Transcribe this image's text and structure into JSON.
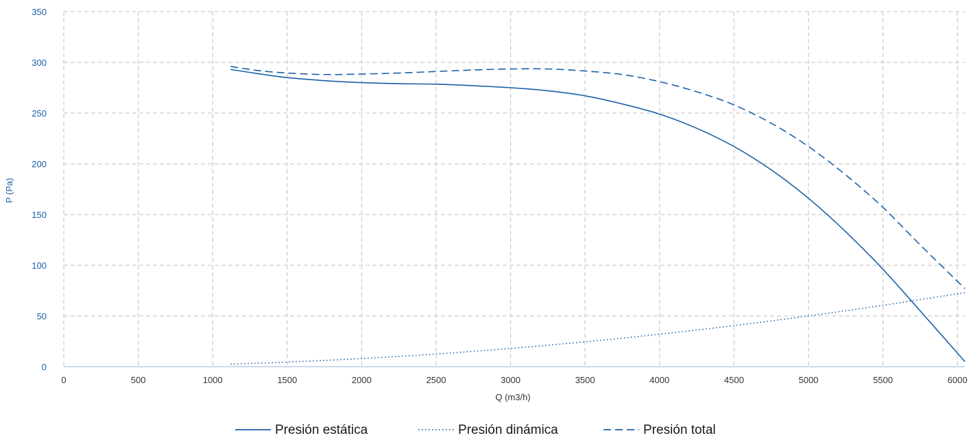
{
  "colors": {
    "series": "#1a5fa8",
    "grid": "#cccccc",
    "ytick": "#1a5fa8",
    "xtick": "#333333"
  },
  "chart_data": {
    "type": "line",
    "xlabel": "Q (m3/h)",
    "ylabel": "P (Pa)",
    "xlim": [
      0,
      6050
    ],
    "ylim": [
      0,
      350
    ],
    "xticks": [
      0,
      500,
      1000,
      1500,
      2000,
      2500,
      3000,
      3500,
      4000,
      4500,
      5000,
      5500,
      6000
    ],
    "yticks": [
      0,
      50,
      100,
      150,
      200,
      250,
      300,
      350
    ],
    "grid": true,
    "legend_position": "bottom",
    "series": [
      {
        "name": "Presión estática",
        "style": "solid",
        "x": [
          1120,
          1300,
          1500,
          1750,
          2000,
          2250,
          2500,
          2750,
          3000,
          3250,
          3500,
          3750,
          4000,
          4250,
          4500,
          4750,
          5000,
          5250,
          5500,
          5750,
          6050
        ],
        "y": [
          293,
          289,
          285,
          282,
          280,
          279,
          278.5,
          277,
          275,
          272,
          267,
          259,
          249,
          235,
          217,
          194,
          166,
          133,
          96,
          55,
          5
        ]
      },
      {
        "name": "Presión dinámica",
        "style": "dotted",
        "x": [
          1120,
          1500,
          2000,
          2500,
          3000,
          3500,
          4000,
          4500,
          5000,
          5500,
          6050
        ],
        "y": [
          2.5,
          4.5,
          8,
          12.5,
          18,
          24.5,
          32,
          40.5,
          50,
          60.5,
          73
        ]
      },
      {
        "name": "Presión total",
        "style": "dashed",
        "x": [
          1120,
          1300,
          1500,
          1750,
          2000,
          2250,
          2500,
          2750,
          3000,
          3250,
          3500,
          3750,
          4000,
          4250,
          4500,
          4750,
          5000,
          5250,
          5500,
          5750,
          6050
        ],
        "y": [
          296,
          292,
          289.5,
          288,
          288.5,
          289.5,
          291,
          292.5,
          293.5,
          293.5,
          291.5,
          288,
          281,
          271,
          258,
          240,
          217,
          189,
          157,
          120,
          77
        ]
      }
    ]
  }
}
